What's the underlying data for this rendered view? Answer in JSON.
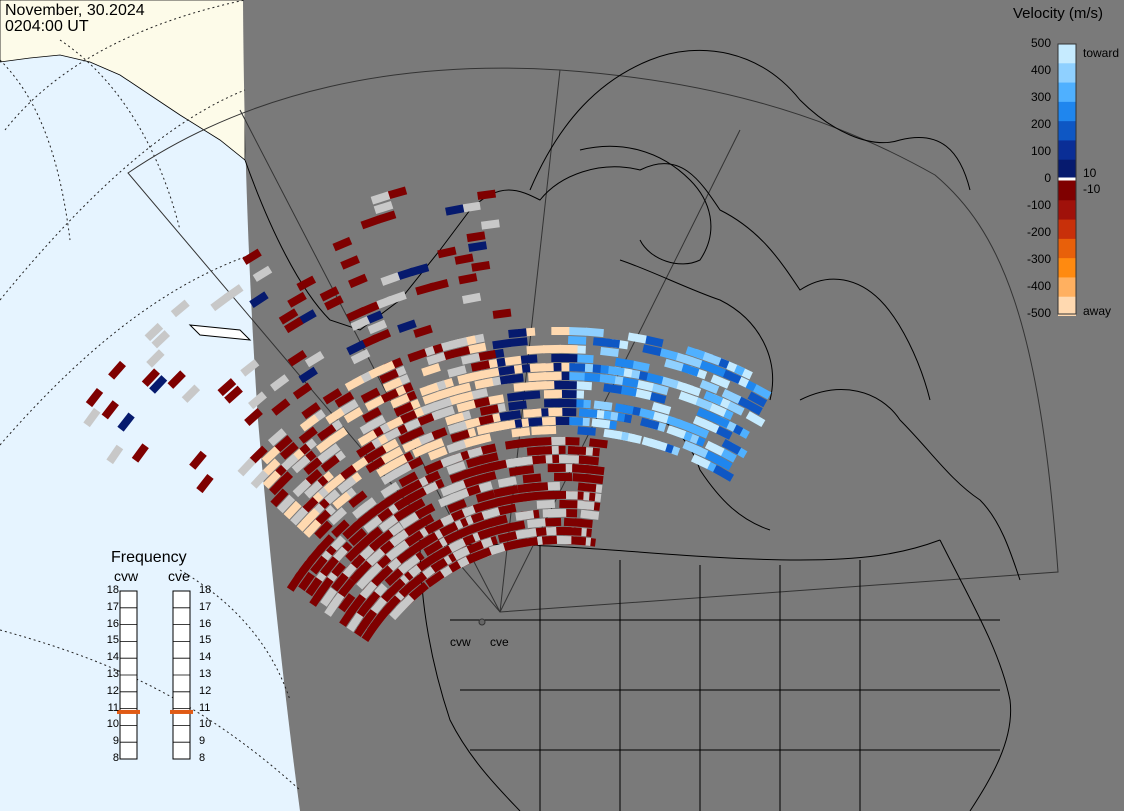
{
  "timestamp": {
    "date": "November, 30.2024",
    "time": "0204:00 UT"
  },
  "colorbar": {
    "title": "Velocity (m/s)",
    "ticks": [
      "500",
      "400",
      "300",
      "200",
      "100",
      "0",
      "-100",
      "-200",
      "-300",
      "-400",
      "-500"
    ],
    "small_ticks": [
      "10",
      "-10"
    ],
    "top_label": "toward",
    "bottom_label": "away",
    "colors_toward": [
      "#c6ebff",
      "#8fd0ff",
      "#4fb0ff",
      "#1f86ee",
      "#0e57c4",
      "#0a2e96",
      "#061a6e"
    ],
    "colors_away": [
      "#ffd9b0",
      "#ffb060",
      "#ff8a10",
      "#e8600a",
      "#c8300a",
      "#a0110a",
      "#7f0000"
    ],
    "ground_scatter": "#c8c8c8"
  },
  "frequency": {
    "title": "Frequency",
    "radars": [
      {
        "name": "cvw",
        "value": 10.8
      },
      {
        "name": "cve",
        "value": 10.8
      }
    ],
    "ticks": [
      "18",
      "17",
      "16",
      "15",
      "14",
      "13",
      "12",
      "11",
      "10",
      "9",
      "8"
    ],
    "marker_color": "#e05a14"
  },
  "sites": [
    {
      "name": "cvw"
    },
    {
      "name": "cve"
    }
  ],
  "map_colors": {
    "ocean": "#e6f4ff",
    "sea_ice": "#fdfbe9",
    "dark_side": "#7a7a7a",
    "coast": "#000000"
  }
}
